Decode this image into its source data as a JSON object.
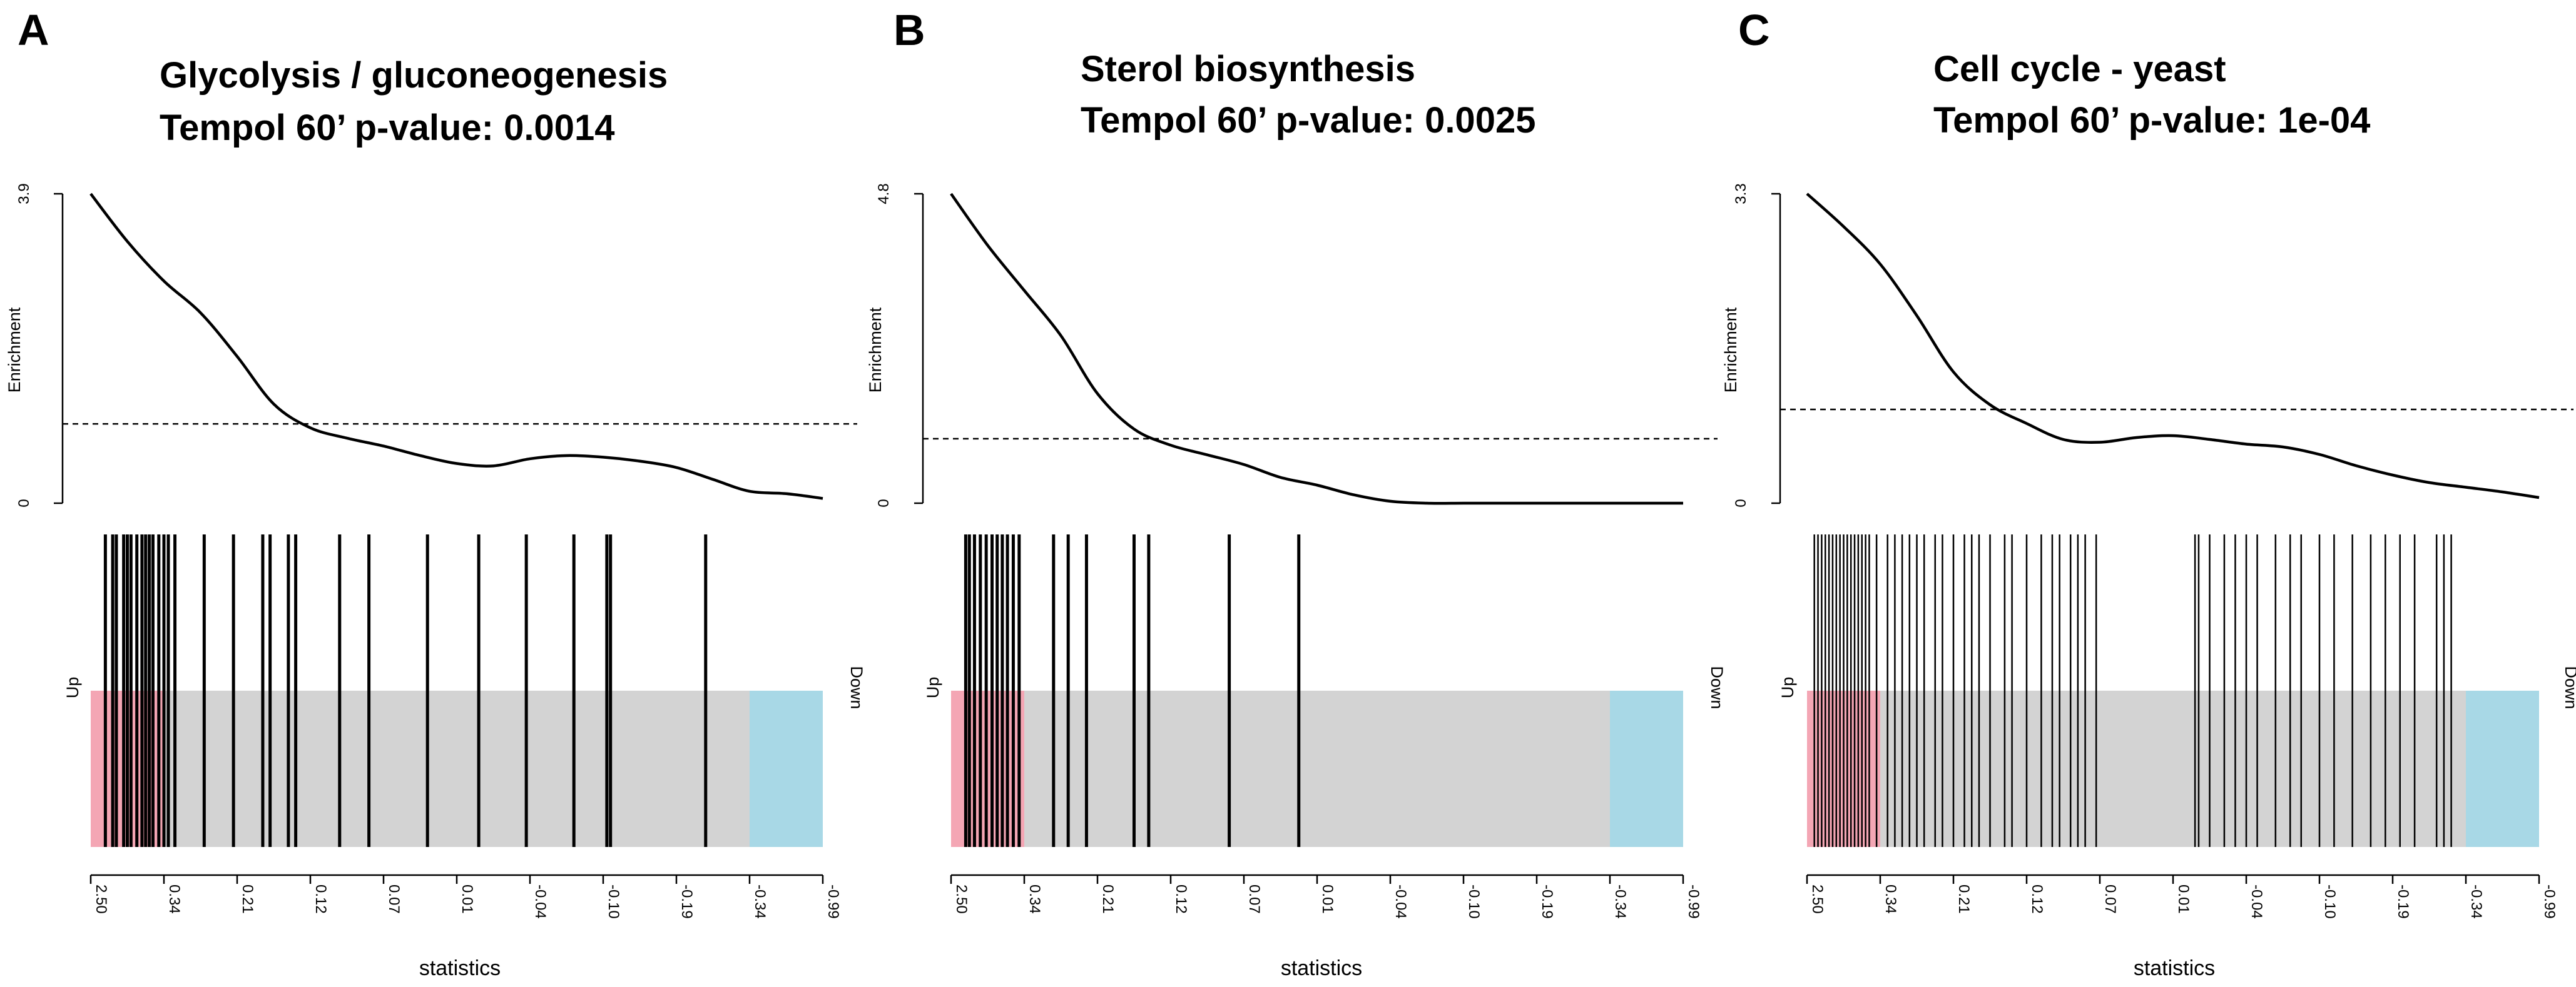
{
  "colors": {
    "up": "#f4a6b4",
    "down": "#a8d8e6",
    "mid": "#d3d3d3",
    "line": "#000000"
  },
  "chart_data": [
    {
      "type": "line",
      "panel": "A",
      "title": "Glycolysis / gluconeogenesis",
      "subtitle": "Tempol 60’ p-value: 0.0014",
      "ylabel": "Enrichment",
      "xlabel": "statistics",
      "ylim": [
        0,
        3.9
      ],
      "yticks": [
        "0",
        "3.9"
      ],
      "threshold": 1.0,
      "x": [
        0,
        0.05,
        0.1,
        0.15,
        0.2,
        0.25,
        0.3,
        0.35,
        0.4,
        0.45,
        0.5,
        0.55,
        0.6,
        0.65,
        0.7,
        0.75,
        0.8,
        0.85,
        0.9,
        0.95,
        1.0
      ],
      "y": [
        3.9,
        3.3,
        2.8,
        2.4,
        1.85,
        1.25,
        0.95,
        0.82,
        0.72,
        0.6,
        0.5,
        0.47,
        0.56,
        0.6,
        0.58,
        0.53,
        0.45,
        0.3,
        0.15,
        0.12,
        0.06
      ],
      "rank_ticks": [
        "2.50",
        "0.34",
        "0.21",
        "0.12",
        "0.07",
        "0.01",
        "-0.04",
        "-0.10",
        "-0.19",
        "-0.34",
        "-0.99"
      ],
      "up_label": "Up",
      "down_label": "Down",
      "up_end": 0.1,
      "down_start": 0.9,
      "barcode": [
        0.02,
        0.03,
        0.035,
        0.045,
        0.05,
        0.055,
        0.063,
        0.07,
        0.075,
        0.08,
        0.085,
        0.093,
        0.1,
        0.106,
        0.115,
        0.155,
        0.195,
        0.235,
        0.245,
        0.27,
        0.28,
        0.34,
        0.38,
        0.46,
        0.53,
        0.595,
        0.66,
        0.705,
        0.71,
        0.84
      ],
      "barcode_weight": 5
    },
    {
      "type": "line",
      "panel": "B",
      "title": "Sterol biosynthesis",
      "subtitle": "Tempol 60’ p-value: 0.0025",
      "ylabel": "Enrichment",
      "xlabel": "statistics",
      "ylim": [
        0,
        4.8
      ],
      "yticks": [
        "0",
        "4.8"
      ],
      "threshold": 1.0,
      "x": [
        0,
        0.05,
        0.1,
        0.15,
        0.2,
        0.25,
        0.3,
        0.35,
        0.4,
        0.45,
        0.5,
        0.55,
        0.6,
        0.65,
        0.7,
        0.75,
        0.8,
        0.85,
        0.9,
        0.95,
        1.0
      ],
      "y": [
        4.8,
        4.0,
        3.3,
        2.6,
        1.7,
        1.15,
        0.9,
        0.75,
        0.6,
        0.4,
        0.28,
        0.13,
        0.03,
        0.0,
        0.0,
        0.0,
        0.0,
        0.0,
        0.0,
        0.0,
        0.0
      ],
      "rank_ticks": [
        "2.50",
        "0.34",
        "0.21",
        "0.12",
        "0.07",
        "0.01",
        "-0.04",
        "-0.10",
        "-0.19",
        "-0.34",
        "-0.99"
      ],
      "up_label": "Up",
      "down_label": "Down",
      "up_end": 0.1,
      "down_start": 0.9,
      "barcode": [
        0.02,
        0.025,
        0.032,
        0.04,
        0.048,
        0.056,
        0.063,
        0.07,
        0.077,
        0.085,
        0.093,
        0.14,
        0.16,
        0.185,
        0.25,
        0.27,
        0.38,
        0.475
      ],
      "barcode_weight": 5
    },
    {
      "type": "line",
      "panel": "C",
      "title": "Cell cycle - yeast",
      "subtitle": "Tempol 60’ p-value: 1e-04",
      "ylabel": "Enrichment",
      "xlabel": "statistics",
      "ylim": [
        0,
        3.3
      ],
      "yticks": [
        "0",
        "3.3"
      ],
      "threshold": 1.0,
      "x": [
        0,
        0.05,
        0.1,
        0.15,
        0.2,
        0.25,
        0.3,
        0.35,
        0.4,
        0.45,
        0.5,
        0.55,
        0.6,
        0.65,
        0.7,
        0.75,
        0.8,
        0.85,
        0.9,
        0.95,
        1.0
      ],
      "y": [
        3.3,
        2.95,
        2.55,
        2.0,
        1.4,
        1.05,
        0.85,
        0.68,
        0.65,
        0.7,
        0.72,
        0.68,
        0.63,
        0.6,
        0.52,
        0.4,
        0.3,
        0.22,
        0.17,
        0.12,
        0.06
      ],
      "rank_ticks": [
        "2.50",
        "0.34",
        "0.21",
        "0.12",
        "0.07",
        "0.01",
        "-0.04",
        "-0.10",
        "-0.19",
        "-0.34",
        "-0.99"
      ],
      "up_label": "Up",
      "down_label": "Down",
      "up_end": 0.1,
      "down_start": 0.9,
      "barcode": [
        0.01,
        0.015,
        0.02,
        0.025,
        0.03,
        0.035,
        0.04,
        0.045,
        0.05,
        0.055,
        0.06,
        0.065,
        0.07,
        0.075,
        0.08,
        0.085,
        0.095,
        0.11,
        0.12,
        0.13,
        0.14,
        0.15,
        0.16,
        0.175,
        0.185,
        0.2,
        0.215,
        0.225,
        0.235,
        0.25,
        0.27,
        0.28,
        0.3,
        0.32,
        0.335,
        0.345,
        0.36,
        0.37,
        0.38,
        0.395,
        0.53,
        0.535,
        0.55,
        0.57,
        0.585,
        0.6,
        0.615,
        0.64,
        0.66,
        0.675,
        0.7,
        0.72,
        0.745,
        0.77,
        0.79,
        0.81,
        0.83,
        0.86,
        0.87,
        0.88
      ],
      "barcode_weight": 2.5
    }
  ]
}
